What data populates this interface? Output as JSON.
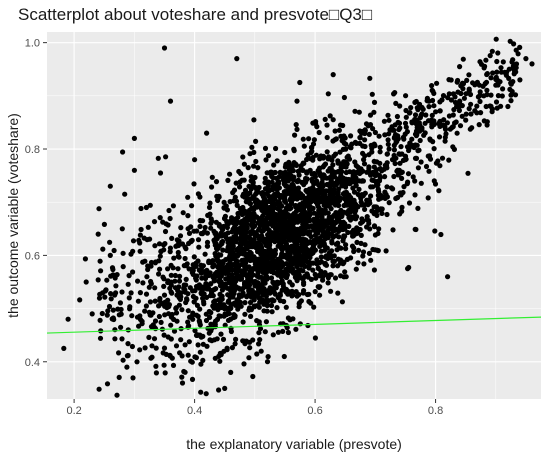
{
  "chart_data": {
    "type": "scatter",
    "title": "Scatterplot about voteshare and presvote□Q3□",
    "xlabel": "the explanatory variable (presvote)",
    "ylabel": "the outcome variable (voteshare)",
    "xlim": [
      0.155,
      0.975
    ],
    "ylim": [
      0.33,
      1.02
    ],
    "x_ticks": [
      0.2,
      0.4,
      0.6,
      0.8
    ],
    "y_ticks": [
      0.4,
      0.6,
      0.8,
      1.0
    ],
    "x_tick_labels": [
      "0.2",
      "0.4",
      "0.6",
      "0.8"
    ],
    "y_tick_labels": [
      "0.4",
      "0.6",
      "0.8",
      "1.0"
    ],
    "grid": true,
    "legend": "none",
    "colors": {
      "panel_background": "#ebebeb",
      "grid": "#ffffff",
      "points": "#000000",
      "fit_line": "#33ee33"
    },
    "fit_line": {
      "x": [
        0.155,
        0.975
      ],
      "y": [
        0.454,
        0.484
      ]
    },
    "points_note_x": [
      0.19,
      0.22,
      0.23,
      0.24,
      0.26,
      0.26,
      0.28,
      0.29,
      0.3,
      0.3,
      0.31,
      0.32,
      0.35,
      0.36,
      0.37,
      0.38,
      0.4,
      0.42,
      0.44,
      0.45,
      0.46,
      0.47,
      0.5,
      0.52,
      0.54,
      0.55,
      0.57,
      0.6,
      0.62,
      0.63,
      0.66,
      0.7,
      0.72,
      0.75,
      0.77,
      0.8,
      0.82,
      0.84,
      0.86,
      0.88,
      0.9,
      0.92,
      0.94,
      0.95,
      0.96
    ],
    "points_note_y": [
      0.48,
      0.55,
      0.49,
      0.64,
      0.73,
      0.6,
      0.65,
      0.46,
      0.82,
      0.76,
      0.53,
      0.69,
      0.99,
      0.89,
      0.43,
      0.36,
      0.78,
      0.83,
      0.41,
      0.35,
      0.38,
      0.97,
      0.62,
      0.68,
      0.7,
      0.72,
      0.89,
      0.66,
      0.64,
      0.94,
      0.7,
      0.75,
      0.71,
      0.78,
      0.85,
      0.87,
      0.56,
      0.89,
      0.84,
      0.9,
      0.92,
      0.88,
      0.93,
      0.97,
      0.96
    ]
  }
}
